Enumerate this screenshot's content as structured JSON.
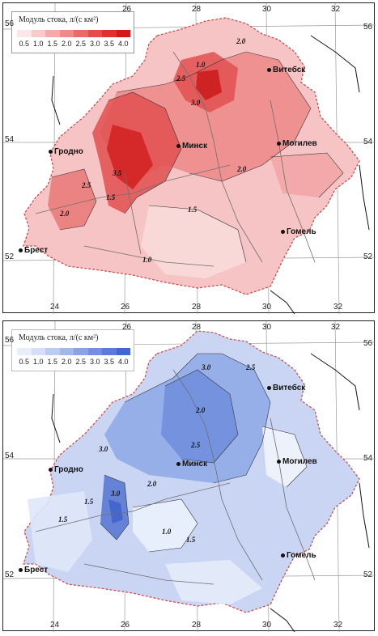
{
  "maps": [
    {
      "id": "top",
      "legend_title": "Модуль стока, л/(с км²)",
      "legend_ticks": [
        "0.5",
        "1.0",
        "1.5",
        "2.0",
        "2.5",
        "3.0",
        "3.5",
        "4.0"
      ],
      "palette": [
        "#fde6e6",
        "#f9caca",
        "#f4aaaa",
        "#ef8a8a",
        "#ea6a6a",
        "#e44c4c",
        "#dd3131",
        "#d41818"
      ],
      "lon_labels_top": [
        "26",
        "28",
        "30",
        "32"
      ],
      "lon_labels_bottom": [
        "24",
        "26",
        "28",
        "30",
        "32"
      ],
      "lat_labels": [
        "56",
        "54",
        "52"
      ],
      "cities": [
        "Витебск",
        "Гродно",
        "Минск",
        "Могилев",
        "Гомель",
        "Брест"
      ],
      "isolines": [
        "2.0",
        "2.5",
        "3.0",
        "3.5",
        "2.5",
        "1.5",
        "2.0",
        "1.0",
        "1.5",
        "1.0",
        "2.0"
      ]
    },
    {
      "id": "bottom",
      "legend_title": "Модуль стока, л/(с км²)",
      "legend_ticks": [
        "0.5",
        "1.0",
        "1.5",
        "2.0",
        "2.5",
        "3.0",
        "3.5",
        "4.0"
      ],
      "palette": [
        "#e8eefb",
        "#d4def7",
        "#bccbf1",
        "#a3b7eb",
        "#8ba3e4",
        "#7290de",
        "#5a7cd7",
        "#4267cf"
      ],
      "lon_labels_top": [
        "26",
        "28",
        "30",
        "32"
      ],
      "lon_labels_bottom": [
        "24",
        "26",
        "28",
        "30",
        "32"
      ],
      "lat_labels": [
        "56",
        "54",
        "52"
      ],
      "cities": [
        "Витебск",
        "Гродно",
        "Минск",
        "Могилев",
        "Гомель",
        "Брест"
      ],
      "isolines": [
        "3.0",
        "2.5",
        "2.0",
        "3.0",
        "2.5",
        "1.5",
        "3.0",
        "2.0",
        "1.5",
        "1.0",
        "1.5"
      ]
    }
  ]
}
